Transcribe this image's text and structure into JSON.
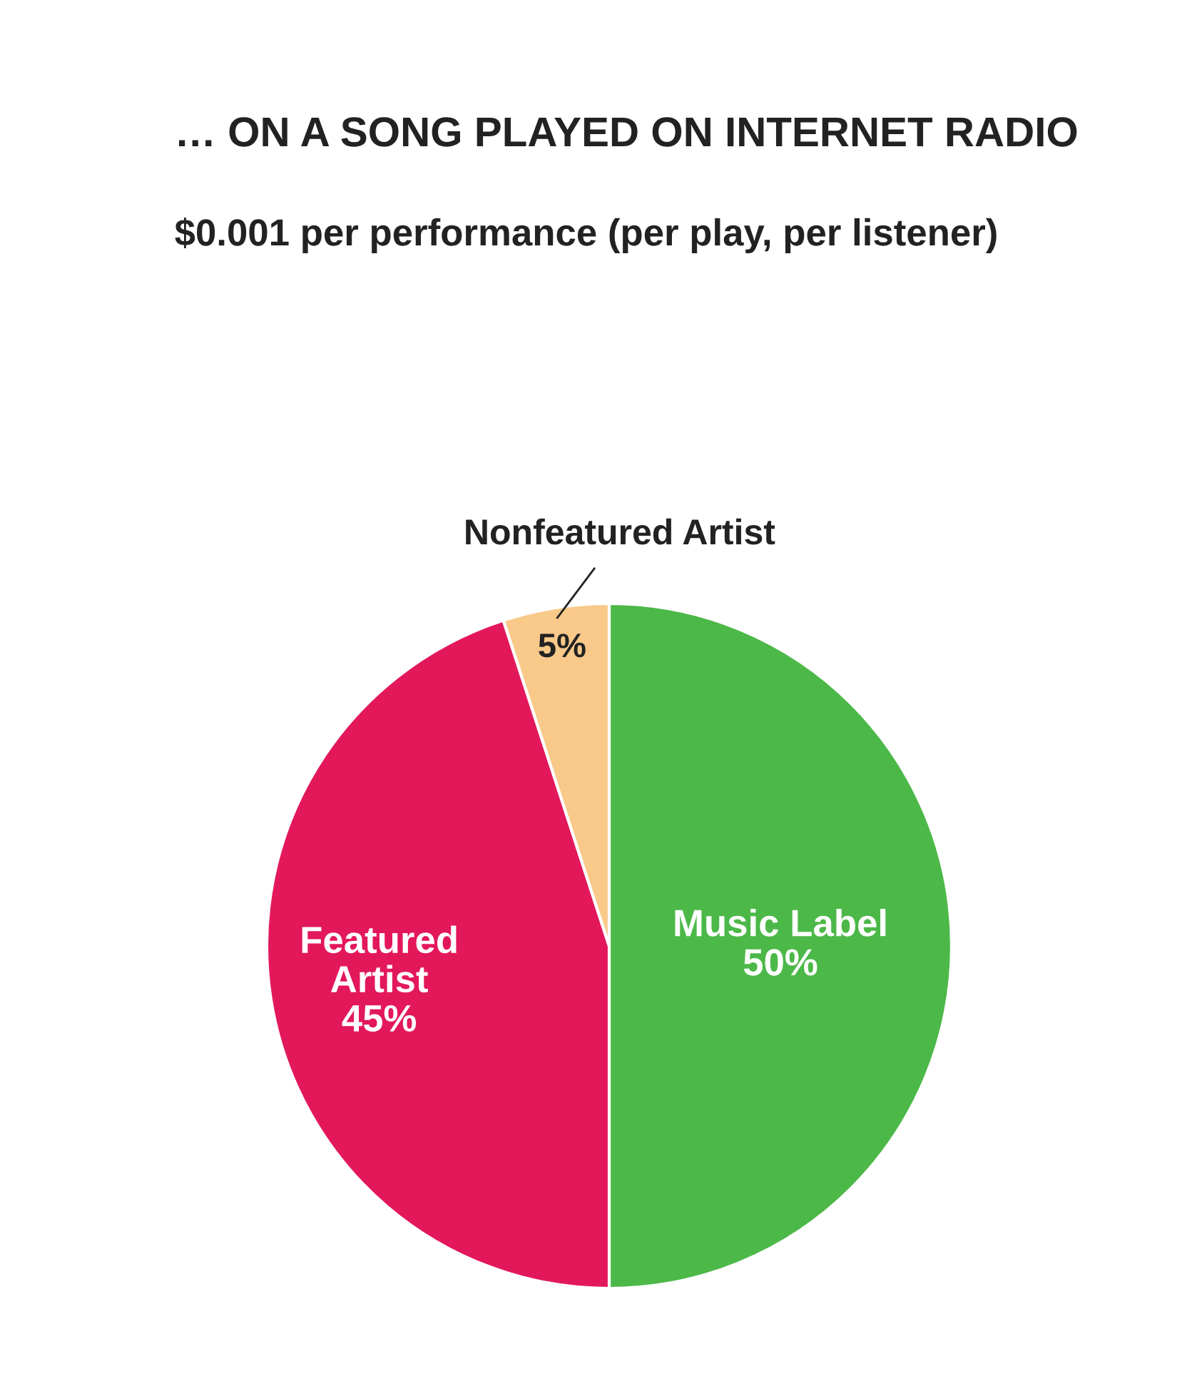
{
  "chart_data": {
    "type": "pie",
    "title": "… ON A SONG PLAYED ON INTERNET RADIO",
    "subtitle": "$0.001 per performance (per play, per listener)",
    "categories": [
      "Music Label",
      "Featured Artist",
      "Nonfeatured Artist"
    ],
    "values": [
      50,
      45,
      5
    ],
    "colors": [
      "#4cb848",
      "#e3185b",
      "#f9c98a"
    ],
    "value_labels": [
      "50%",
      "45%",
      "5%"
    ]
  }
}
